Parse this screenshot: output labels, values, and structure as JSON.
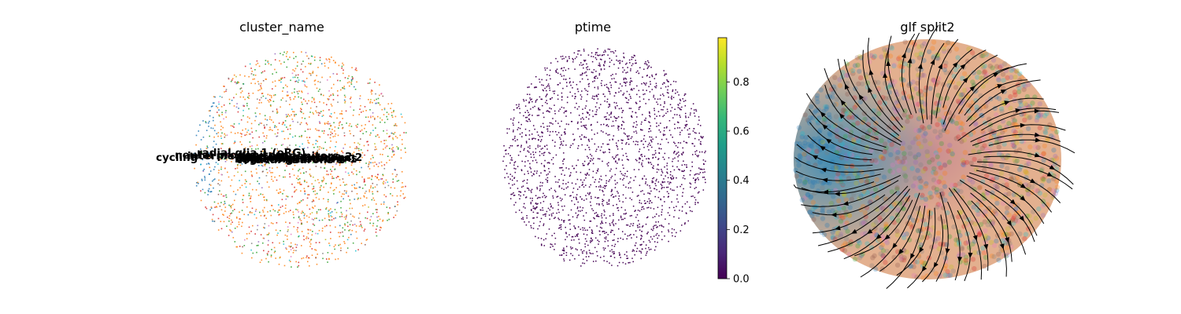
{
  "chart_data": [
    {
      "type": "scatter",
      "title": "cluster_name",
      "colors": [
        "#1f77b4",
        "#ff7f0e",
        "#2ca02c",
        "#d62728",
        "#9467bd",
        "#8c564b",
        "#e377c2",
        "#7f7f7f",
        "#bcbd22",
        "#17becf"
      ],
      "cluster_labels": [
        {
          "text": "cycling"
        },
        {
          "text": "radial glia 1 (oRG)"
        },
        {
          "text": "neural progenitors"
        },
        {
          "text": "intermediate progenitors"
        },
        {
          "text": "migrating neurons 1"
        },
        {
          "text": "migrating neurons 2"
        },
        {
          "text": "cortical neurons 1"
        },
        {
          "text": "cortical neurons 2"
        },
        {
          "text": "upper layer neurons"
        }
      ]
    },
    {
      "type": "scatter",
      "title": "ptime",
      "colormap": "viridis",
      "point_color": "#440154",
      "colorbar": {
        "min": 0.0,
        "max": 0.98,
        "ticks": [
          0.0,
          0.2,
          0.4,
          0.6,
          0.8
        ],
        "tick_labels": [
          "0.0",
          "0.2",
          "0.4",
          "0.6",
          "0.8"
        ],
        "stops": [
          "#440154",
          "#482878",
          "#3e4989",
          "#31688e",
          "#26828e",
          "#1f9e89",
          "#35b779",
          "#6ece58",
          "#b5de2b",
          "#fde725"
        ]
      }
    },
    {
      "type": "scatter",
      "title": "glf split2",
      "overlay": "streamlines",
      "colors": [
        "#1f77b4",
        "#ff7f0e",
        "#2ca02c",
        "#d62728",
        "#9467bd",
        "#8c564b",
        "#e377c2",
        "#7f7f7f",
        "#bcbd22",
        "#17becf"
      ]
    }
  ]
}
